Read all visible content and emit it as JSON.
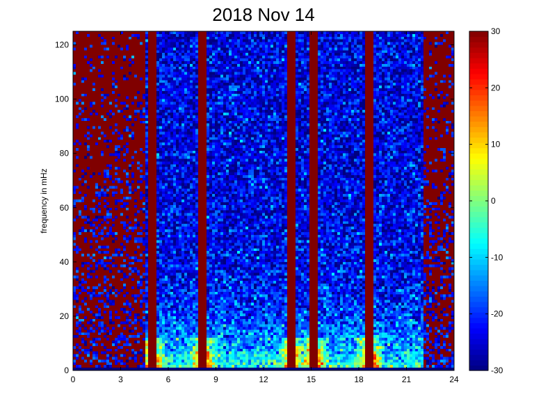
{
  "chart_data": {
    "type": "heatmap",
    "title": "2018 Nov 14",
    "xlabel": "",
    "ylabel": "frequency in mHz",
    "xlim": [
      0,
      24
    ],
    "ylim": [
      0,
      125
    ],
    "xticks": [
      0,
      3,
      6,
      9,
      12,
      15,
      18,
      21,
      24
    ],
    "yticks": [
      0,
      20,
      40,
      60,
      80,
      100,
      120
    ],
    "colorbar": {
      "clim": [
        -30,
        30
      ],
      "ticks": [
        30,
        20,
        10,
        0,
        -10,
        -20,
        -30
      ],
      "colormap": "jet"
    },
    "description_values": {
      "saturated_bursts_hours": [
        5.0,
        8.2,
        13.8,
        15.2,
        18.7
      ],
      "dark_band_hours": [
        [
          0,
          4.5
        ],
        [
          22,
          24
        ]
      ],
      "low_freq_power_max_mHz": 25
    }
  }
}
